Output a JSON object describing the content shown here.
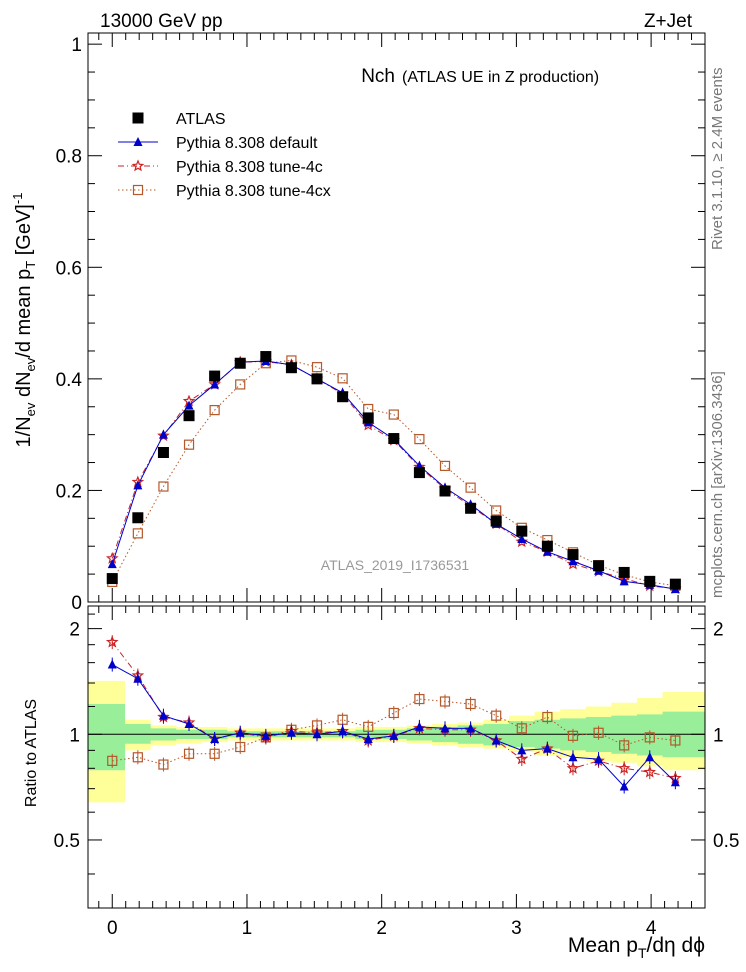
{
  "header": {
    "left": "13000 GeV pp",
    "right": "Z+Jet"
  },
  "title": {
    "main": "Nch",
    "sub": "(ATLAS UE in Z production)"
  },
  "side_labels": {
    "rivet": "Rivet 3.1.10, ≥ 2.4M events",
    "mcplots": "mcplots.cern.ch [arXiv:1306.3436]"
  },
  "watermark": "ATLAS_2019_I1736531",
  "ylabel_main": "1/N_ev dN_ev/d mean p_T [GeV]^-1",
  "ylabel_ratio": "Ratio to ATLAS",
  "xlabel": "Mean p_T/dη dϕ",
  "colors": {
    "atlas": "#000000",
    "default": "#0000cc",
    "tune4c": "#cc2222",
    "tune4cx": "#b5582a",
    "band_inner": "#99ee99",
    "band_outer": "#ffff99"
  },
  "chart_data": [
    {
      "type": "scatter",
      "panel": "main",
      "xlim": [
        -0.18,
        4.4
      ],
      "ylim": [
        0,
        1.02
      ],
      "yticks": [
        "0",
        "0.2",
        "0.4",
        "0.6",
        "0.8",
        "1"
      ],
      "legend_placement": "top-left",
      "x": [
        0.0,
        0.19,
        0.38,
        0.57,
        0.76,
        0.95,
        1.14,
        1.33,
        1.52,
        1.71,
        1.9,
        2.09,
        2.28,
        2.47,
        2.66,
        2.85,
        3.04,
        3.23,
        3.42,
        3.61,
        3.8,
        3.99,
        4.18
      ],
      "series": [
        {
          "name": "ATLAS",
          "marker": "square",
          "values": [
            0.042,
            0.151,
            0.268,
            0.334,
            0.405,
            0.428,
            0.44,
            0.42,
            0.4,
            0.368,
            0.33,
            0.293,
            0.232,
            0.199,
            0.168,
            0.145,
            0.127,
            0.1,
            0.085,
            0.065,
            0.053,
            0.037,
            0.032
          ]
        },
        {
          "name": "Pythia 8.308 default",
          "marker": "triangle",
          "values": [
            0.068,
            0.209,
            0.3,
            0.352,
            0.39,
            0.43,
            0.432,
            0.425,
            0.4,
            0.375,
            0.322,
            0.292,
            0.244,
            0.205,
            0.175,
            0.14,
            0.113,
            0.09,
            0.073,
            0.056,
            0.037,
            0.031,
            0.023
          ]
        },
        {
          "name": "Pythia 8.308 tune-4c",
          "marker": "star",
          "values": [
            0.078,
            0.215,
            0.298,
            0.36,
            0.39,
            0.43,
            0.431,
            0.425,
            0.4,
            0.373,
            0.317,
            0.29,
            0.242,
            0.203,
            0.172,
            0.14,
            0.108,
            0.09,
            0.068,
            0.055,
            0.042,
            0.029,
            0.024
          ]
        },
        {
          "name": "Pythia 8.308 tune-4cx",
          "marker": "open-square",
          "values": [
            0.036,
            0.123,
            0.207,
            0.282,
            0.344,
            0.39,
            0.428,
            0.433,
            0.421,
            0.401,
            0.346,
            0.336,
            0.292,
            0.244,
            0.205,
            0.164,
            0.133,
            0.111,
            0.089,
            0.066,
            0.049,
            0.036,
            0.029
          ]
        }
      ]
    },
    {
      "type": "scatter",
      "panel": "ratio",
      "xlim": [
        -0.18,
        4.4
      ],
      "ylim": [
        0.32,
        2.32
      ],
      "ylabel": "Ratio to ATLAS",
      "xticks": [
        "0",
        "1",
        "2",
        "3",
        "4"
      ],
      "yticks": [
        "0.5",
        "1",
        "2"
      ],
      "x": [
        0.0,
        0.19,
        0.38,
        0.57,
        0.76,
        0.95,
        1.14,
        1.33,
        1.52,
        1.71,
        1.9,
        2.09,
        2.28,
        2.47,
        2.66,
        2.85,
        3.04,
        3.23,
        3.42,
        3.61,
        3.8,
        3.99,
        4.18
      ],
      "bands": {
        "inner_low": [
          0.79,
          0.94,
          0.96,
          0.97,
          0.97,
          0.98,
          0.98,
          0.98,
          0.98,
          0.98,
          0.97,
          0.97,
          0.96,
          0.95,
          0.94,
          0.93,
          0.92,
          0.91,
          0.9,
          0.89,
          0.88,
          0.87,
          0.86
        ],
        "inner_high": [
          1.22,
          1.07,
          1.04,
          1.03,
          1.03,
          1.02,
          1.02,
          1.02,
          1.02,
          1.02,
          1.03,
          1.03,
          1.04,
          1.05,
          1.06,
          1.07,
          1.09,
          1.1,
          1.11,
          1.12,
          1.13,
          1.14,
          1.16
        ],
        "outer_low": [
          0.64,
          0.9,
          0.93,
          0.94,
          0.95,
          0.96,
          0.96,
          0.96,
          0.96,
          0.96,
          0.95,
          0.95,
          0.94,
          0.93,
          0.92,
          0.91,
          0.89,
          0.87,
          0.86,
          0.84,
          0.83,
          0.81,
          0.79
        ],
        "outer_high": [
          1.42,
          1.1,
          1.06,
          1.05,
          1.05,
          1.04,
          1.04,
          1.04,
          1.04,
          1.04,
          1.05,
          1.05,
          1.06,
          1.07,
          1.08,
          1.1,
          1.13,
          1.16,
          1.18,
          1.2,
          1.23,
          1.27,
          1.32
        ]
      },
      "series": [
        {
          "name": "Pythia 8.308 default",
          "values": [
            1.58,
            1.44,
            1.13,
            1.07,
            0.97,
            1.01,
            0.99,
            1.01,
            1.0,
            1.02,
            0.97,
            0.99,
            1.05,
            1.04,
            1.04,
            0.96,
            0.9,
            0.91,
            0.86,
            0.85,
            0.71,
            0.86,
            0.73
          ]
        },
        {
          "name": "Pythia 8.308 tune-4c",
          "values": [
            1.83,
            1.47,
            1.12,
            1.08,
            0.97,
            1.01,
            0.98,
            1.02,
            1.01,
            1.02,
            0.96,
            0.99,
            1.04,
            1.03,
            1.03,
            0.96,
            0.85,
            0.91,
            0.8,
            0.84,
            0.8,
            0.78,
            0.75
          ]
        },
        {
          "name": "Pythia 8.308 tune-4cx",
          "values": [
            0.84,
            0.86,
            0.82,
            0.88,
            0.88,
            0.92,
            0.98,
            1.03,
            1.06,
            1.1,
            1.05,
            1.15,
            1.26,
            1.24,
            1.22,
            1.13,
            1.04,
            1.12,
            0.99,
            1.01,
            0.93,
            0.98,
            0.96
          ]
        }
      ]
    }
  ]
}
